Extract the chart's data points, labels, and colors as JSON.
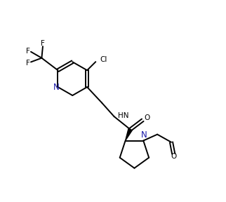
{
  "background_color": "#ffffff",
  "line_color": "#000000",
  "text_color": "#000000",
  "blue_color": "#1a1aaa",
  "figsize": [
    3.22,
    2.88
  ],
  "dpi": 100,
  "xlim": [
    0,
    10
  ],
  "ylim": [
    0,
    9
  ]
}
